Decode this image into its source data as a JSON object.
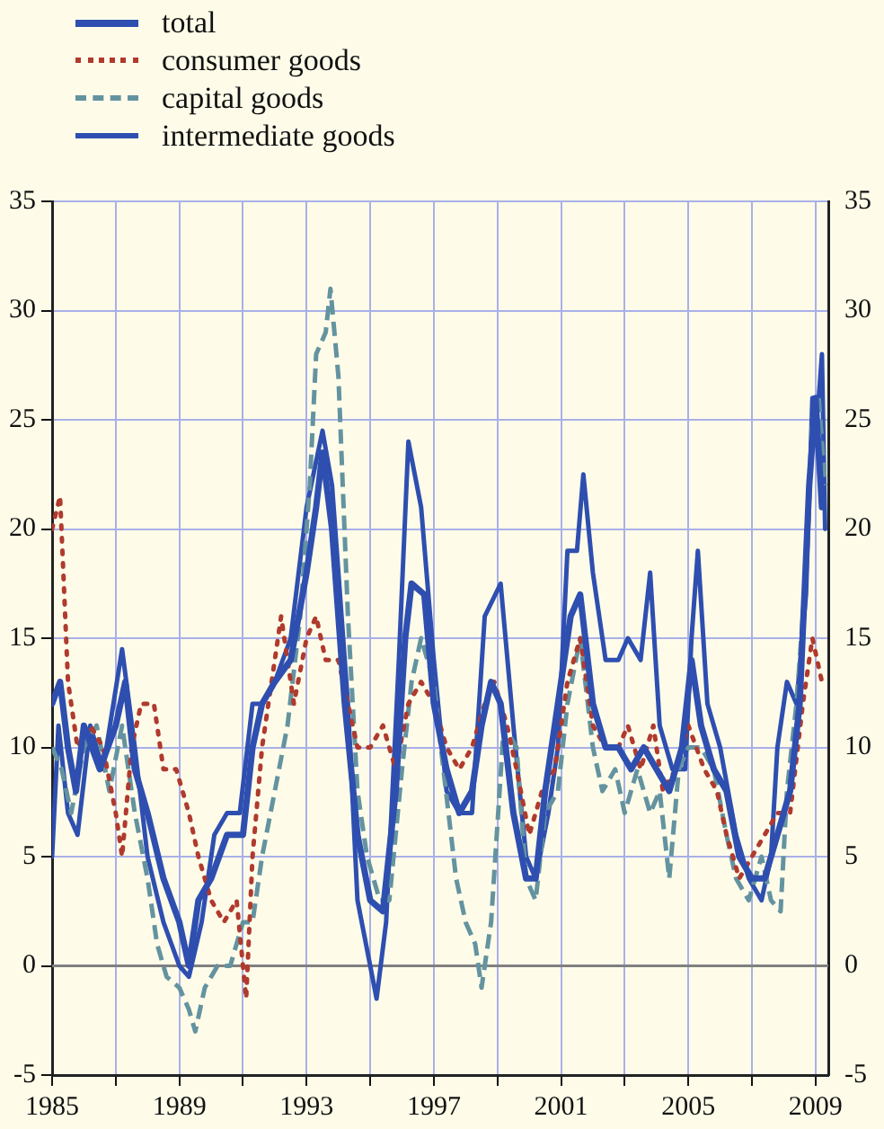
{
  "chart_data": {
    "type": "line",
    "xlim": [
      1985,
      2009.4
    ],
    "xticks": [
      1985,
      {
        "value": 1987,
        "label": null
      },
      1989,
      {
        "value": 1991,
        "label": null
      },
      1993,
      {
        "value": 1995,
        "label": null
      },
      1997,
      {
        "value": 1999,
        "label": null
      },
      2001,
      {
        "value": 2003,
        "label": null
      },
      2005,
      {
        "value": 2007,
        "label": null
      },
      2009
    ],
    "ylim": [
      -5,
      35
    ],
    "yticks": [
      -5,
      0,
      5,
      10,
      15,
      20,
      25,
      30,
      35
    ],
    "y2lim": [
      -5,
      35
    ],
    "y2ticks": [
      -5,
      0,
      5,
      10,
      15,
      20,
      25,
      30,
      35
    ],
    "grid": true,
    "legend": "top left",
    "marker": "none",
    "ref_lines": [
      {
        "axis": "y",
        "value": 0,
        "color": "#808080"
      }
    ],
    "series": [
      {
        "name": "total",
        "color": "#2e4fb0",
        "line_style": "solid",
        "x": [
          1985.0,
          1985.25,
          1985.5,
          1985.75,
          1986.0,
          1986.5,
          1987.0,
          1987.3,
          1987.6,
          1988.0,
          1988.5,
          1989.0,
          1989.3,
          1989.6,
          1990.0,
          1990.5,
          1991.0,
          1991.3,
          1991.6,
          1992.0,
          1992.5,
          1993.0,
          1993.3,
          1993.5,
          1993.8,
          1994.2,
          1994.6,
          1995.0,
          1995.4,
          1995.8,
          1996.1,
          1996.3,
          1996.7,
          1997.0,
          1997.4,
          1997.8,
          1998.2,
          1998.5,
          1998.8,
          1999.1,
          1999.5,
          1999.9,
          2000.2,
          2000.5,
          2000.9,
          2001.3,
          2001.6,
          2002.0,
          2002.4,
          2002.8,
          2003.2,
          2003.6,
          2004.0,
          2004.4,
          2004.8,
          2005.1,
          2005.4,
          2005.8,
          2006.2,
          2006.6,
          2007.0,
          2007.4,
          2007.8,
          2008.2,
          2008.5,
          2008.8,
          2009.0,
          2009.2
        ],
        "values": [
          12,
          13,
          10,
          8,
          11,
          9,
          11,
          13,
          9,
          7,
          4,
          2,
          0,
          3,
          4,
          6,
          6,
          10,
          12,
          13,
          14,
          18,
          21,
          23.5,
          20,
          12,
          6,
          3,
          2.5,
          8,
          15,
          17.5,
          17,
          12,
          9,
          7,
          8,
          11,
          13,
          12,
          7,
          4,
          4,
          8,
          12,
          16,
          17,
          12,
          10,
          10,
          9,
          10,
          9,
          8,
          10,
          14,
          11,
          9,
          8,
          5,
          4,
          4,
          6,
          8,
          12,
          22,
          26,
          21
        ]
      },
      {
        "name": "consumer goods",
        "color": "#b03a2e",
        "line_style": "dotted",
        "x": [
          1985.0,
          1985.25,
          1985.5,
          1985.8,
          1986.2,
          1986.6,
          1987.0,
          1987.2,
          1987.5,
          1987.8,
          1988.2,
          1988.5,
          1988.9,
          1989.3,
          1989.6,
          1990.0,
          1990.4,
          1990.8,
          1991.1,
          1991.3,
          1991.6,
          1992.0,
          1992.2,
          1992.6,
          1993.0,
          1993.3,
          1993.6,
          1994.0,
          1994.3,
          1994.6,
          1995.0,
          1995.4,
          1995.8,
          1996.2,
          1996.6,
          1997.0,
          1997.4,
          1997.8,
          1998.2,
          1998.6,
          1998.9,
          1999.3,
          1999.6,
          2000.0,
          2000.4,
          2000.8,
          2001.2,
          2001.6,
          2002.0,
          2002.4,
          2002.8,
          2003.1,
          2003.5,
          2003.9,
          2004.2,
          2004.6,
          2005.0,
          2005.5,
          2005.9,
          2006.2,
          2006.6,
          2007.0,
          2007.4,
          2007.8,
          2008.2,
          2008.6,
          2008.9,
          2009.2
        ],
        "values": [
          20,
          21.5,
          13,
          10,
          11,
          10,
          7,
          5,
          10,
          12,
          12,
          9,
          9,
          7,
          5,
          3,
          2,
          3,
          -1.5,
          5,
          10,
          14,
          16,
          12,
          15,
          16,
          14,
          14,
          12,
          10,
          10,
          11,
          9,
          12,
          13,
          12,
          10,
          9,
          10,
          12,
          13,
          11,
          9,
          6,
          8,
          9,
          13,
          15,
          11,
          10,
          10,
          11,
          9,
          11,
          8,
          9,
          11,
          9,
          8,
          6,
          4,
          5,
          6,
          7,
          7,
          12,
          15,
          13
        ]
      },
      {
        "name": "capital goods",
        "color": "#6493a0",
        "line_style": "dashed",
        "x": [
          1985.0,
          1985.3,
          1985.6,
          1986.0,
          1986.4,
          1986.8,
          1987.2,
          1987.6,
          1988.0,
          1988.3,
          1988.6,
          1989.0,
          1989.3,
          1989.5,
          1989.8,
          1990.2,
          1990.6,
          1991.0,
          1991.3,
          1991.6,
          1992.0,
          1992.4,
          1992.8,
          1993.1,
          1993.3,
          1993.6,
          1993.75,
          1994.0,
          1994.3,
          1994.6,
          1994.9,
          1995.3,
          1995.6,
          1996.0,
          1996.3,
          1996.6,
          1997.0,
          1997.3,
          1997.7,
          1998.0,
          1998.3,
          1998.5,
          1998.8,
          1999.2,
          1999.6,
          1999.9,
          2000.2,
          2000.5,
          2000.9,
          2001.2,
          2001.6,
          2002.0,
          2002.3,
          2002.7,
          2003.0,
          2003.4,
          2003.8,
          2004.1,
          2004.4,
          2004.7,
          2005.0,
          2005.4,
          2005.8,
          2006.2,
          2006.5,
          2006.9,
          2007.3,
          2007.6,
          2007.9,
          2008.1,
          2008.4,
          2008.7,
          2008.9,
          2009.1,
          2009.3
        ],
        "values": [
          10,
          9,
          7,
          10,
          11,
          8,
          11,
          7,
          4,
          1,
          -0.5,
          -1,
          -2,
          -3,
          -1,
          0,
          0,
          2,
          2,
          5,
          8,
          11,
          16,
          22,
          28,
          29,
          31,
          27,
          16,
          8,
          5,
          3,
          3,
          9,
          13,
          15,
          13,
          9,
          4,
          2,
          1,
          -1,
          2,
          11,
          10,
          4,
          3,
          7,
          8,
          12,
          15,
          10,
          8,
          9,
          7,
          9,
          7,
          8,
          4,
          9,
          10,
          10,
          9,
          6,
          4,
          3,
          5,
          3,
          2.5,
          8,
          12,
          18,
          25,
          26,
          22
        ]
      },
      {
        "name": "intermediate goods",
        "color": "#2e4fb0",
        "line_style": "solid",
        "x": [
          1985.0,
          1985.2,
          1985.5,
          1985.8,
          1986.2,
          1986.6,
          1987.2,
          1987.6,
          1988.0,
          1988.5,
          1989.0,
          1989.3,
          1989.7,
          1990.1,
          1990.5,
          1990.9,
          1991.3,
          1991.6,
          1992.0,
          1992.5,
          1993.0,
          1993.5,
          1993.8,
          1994.3,
          1994.6,
          1995.0,
          1995.2,
          1995.5,
          1995.9,
          1996.2,
          1996.6,
          1997.0,
          1997.4,
          1997.8,
          1998.2,
          1998.6,
          1999.1,
          1999.5,
          1999.9,
          2000.2,
          2000.6,
          2000.9,
          2001.2,
          2001.5,
          2001.7,
          2002.0,
          2002.4,
          2002.8,
          2003.1,
          2003.5,
          2003.8,
          2004.1,
          2004.5,
          2004.9,
          2005.1,
          2005.3,
          2005.6,
          2006.0,
          2006.5,
          2006.9,
          2007.3,
          2007.6,
          2007.8,
          2008.1,
          2008.4,
          2008.7,
          2008.9,
          2009.1,
          2009.2,
          2009.3
        ],
        "values": [
          5,
          11,
          7,
          6,
          11,
          9,
          14.5,
          10,
          5,
          2,
          0,
          -0.5,
          2,
          6,
          7,
          7,
          12,
          12,
          13,
          15,
          21,
          24.5,
          22,
          12,
          3,
          0,
          -1.5,
          2,
          14,
          24,
          21,
          14,
          8,
          7,
          7,
          16,
          17.5,
          11,
          5,
          4,
          7,
          10,
          19,
          19,
          22.5,
          18,
          14,
          14,
          15,
          14,
          18,
          11,
          9,
          9,
          15,
          19,
          12,
          10,
          6,
          4,
          3,
          5,
          10,
          13,
          12,
          17,
          26,
          26,
          28,
          20
        ]
      }
    ]
  }
}
